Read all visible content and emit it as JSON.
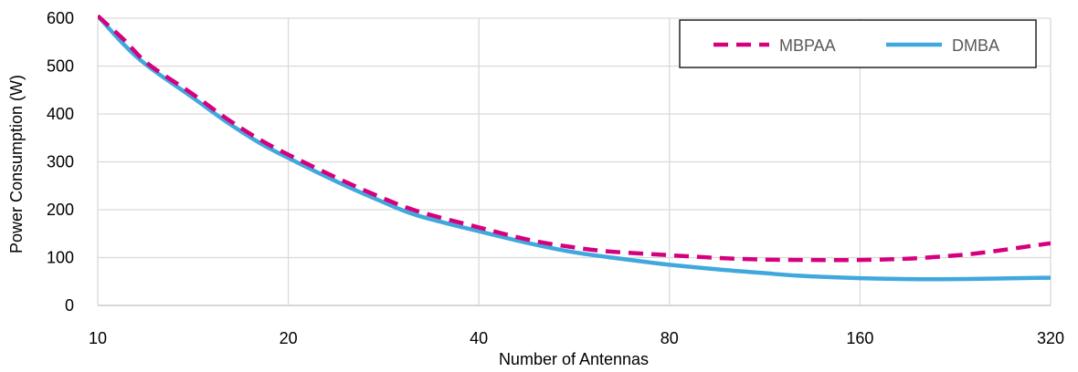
{
  "chart_data": {
    "type": "line",
    "xlabel": "Number of Antennas",
    "ylabel": "Power Consumption (W)",
    "x_scale": "log2",
    "xlim": [
      10,
      320
    ],
    "ylim": [
      0,
      600
    ],
    "x_ticks": [
      "10",
      "20",
      "40",
      "80",
      "160",
      "320"
    ],
    "y_ticks": [
      "0",
      "100",
      "200",
      "300",
      "400",
      "500",
      "600"
    ],
    "grid": true,
    "legend_position": "top-right",
    "series": [
      {
        "name": "MBPAA",
        "color": "#d6007e",
        "dash": "dashed",
        "x": [
          10,
          11,
          12,
          14,
          16,
          18,
          20,
          24,
          28,
          32,
          40,
          48,
          56,
          64,
          80,
          96,
          112,
          128,
          160,
          192,
          224,
          256,
          320
        ],
        "y": [
          605,
          555,
          505,
          445,
          390,
          347,
          315,
          265,
          226,
          197,
          163,
          137,
          122,
          113,
          105,
          99,
          96,
          95,
          95,
          98,
          104,
          112,
          130
        ]
      },
      {
        "name": "DMBA",
        "color": "#41a8dd",
        "dash": "solid",
        "x": [
          10,
          11,
          12,
          14,
          16,
          18,
          20,
          24,
          28,
          32,
          40,
          48,
          56,
          64,
          80,
          96,
          112,
          128,
          160,
          192,
          224,
          256,
          320
        ],
        "y": [
          605,
          545,
          500,
          438,
          383,
          340,
          308,
          257,
          218,
          188,
          155,
          130,
          112,
          101,
          85,
          75,
          68,
          62,
          57,
          55,
          55,
          56,
          58
        ]
      }
    ]
  }
}
